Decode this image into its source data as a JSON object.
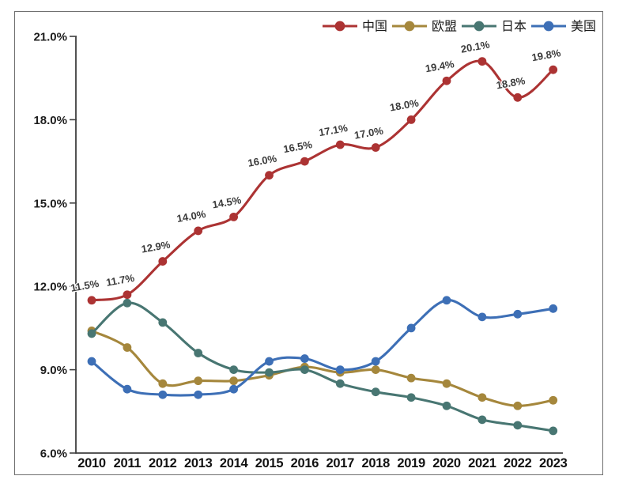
{
  "chart_data": {
    "type": "line",
    "title": "",
    "xlabel": "",
    "ylabel": "",
    "categories": [
      "2010",
      "2011",
      "2012",
      "2013",
      "2014",
      "2015",
      "2016",
      "2017",
      "2018",
      "2019",
      "2020",
      "2021",
      "2022",
      "2023"
    ],
    "series": [
      {
        "key": "china",
        "name": "中国",
        "color": "#AC3333",
        "values": [
          11.5,
          11.7,
          12.9,
          14.0,
          14.5,
          16.0,
          16.5,
          17.1,
          17.0,
          18.0,
          19.4,
          20.1,
          18.8,
          19.8
        ],
        "point_labels": [
          "11.5%",
          "11.7%",
          "12.9%",
          "14.0%",
          "14.5%",
          "16.0%",
          "16.5%",
          "17.1%",
          "17.0%",
          "18.0%",
          "19.4%",
          "20.1%",
          "18.8%",
          "19.8%"
        ]
      },
      {
        "key": "eu",
        "name": "欧盟",
        "color": "#A5873C",
        "values": [
          10.4,
          9.8,
          8.5,
          8.6,
          8.6,
          8.8,
          9.1,
          8.9,
          9.0,
          8.7,
          8.5,
          8.0,
          7.7,
          7.9
        ]
      },
      {
        "key": "japan",
        "name": "日本",
        "color": "#487672",
        "values": [
          10.3,
          11.4,
          10.7,
          9.6,
          9.0,
          8.9,
          9.0,
          8.5,
          8.2,
          8.0,
          7.7,
          7.2,
          7.0,
          6.8
        ]
      },
      {
        "key": "usa",
        "name": "美国",
        "color": "#3D6FB6",
        "values": [
          9.3,
          8.3,
          8.1,
          8.1,
          8.3,
          9.3,
          9.4,
          9.0,
          9.3,
          10.5,
          11.5,
          10.9,
          11.0,
          11.2
        ]
      }
    ],
    "y_axis": {
      "min": 6,
      "max": 21,
      "tick_values": [
        6,
        9,
        12,
        15,
        18,
        21
      ],
      "tick_labels": [
        "6.0%",
        "9.0%",
        "12.0%",
        "15.0%",
        "18.0%",
        "21.0%"
      ]
    },
    "legend_position": "top-right",
    "grid": false,
    "smooth_lines": true
  }
}
